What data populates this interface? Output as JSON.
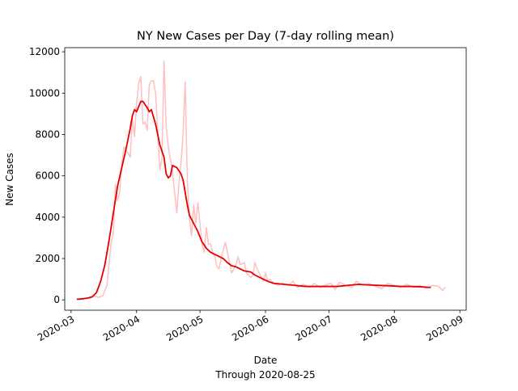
{
  "chart_data": {
    "type": "line",
    "title": "NY New Cases per Day (7-day rolling mean)",
    "xlabel": "Date",
    "xlabel_sub": "Through 2020-08-25",
    "ylabel": "New Cases",
    "xlim": [
      "2020-02-27",
      "2020-09-04"
    ],
    "ylim": [
      -500,
      12200
    ],
    "x_ticks": [
      "2020-03-01",
      "2020-04-01",
      "2020-05-01",
      "2020-06-01",
      "2020-07-01",
      "2020-08-01",
      "2020-09-01"
    ],
    "x_tick_labels": [
      "2020-03",
      "2020-04",
      "2020-05",
      "2020-06",
      "2020-07",
      "2020-08",
      "2020-09"
    ],
    "y_ticks": [
      0,
      2000,
      4000,
      6000,
      8000,
      10000,
      12000
    ],
    "y_tick_labels": [
      "0",
      "2000",
      "4000",
      "6000",
      "8000",
      "10000",
      "12000"
    ],
    "grid": false,
    "legend": "none",
    "series": [
      {
        "color": "#ffbfbf",
        "points": [
          [
            "2020-03-04",
            20
          ],
          [
            "2020-03-08",
            60
          ],
          [
            "2020-03-10",
            90
          ],
          [
            "2020-03-12",
            180
          ],
          [
            "2020-03-14",
            120
          ],
          [
            "2020-03-16",
            200
          ],
          [
            "2020-03-18",
            700
          ],
          [
            "2020-03-20",
            2800
          ],
          [
            "2020-03-21",
            3200
          ],
          [
            "2020-03-22",
            5600
          ],
          [
            "2020-03-23",
            4800
          ],
          [
            "2020-03-24",
            5200
          ],
          [
            "2020-03-25",
            6600
          ],
          [
            "2020-03-26",
            7400
          ],
          [
            "2020-03-28",
            7100
          ],
          [
            "2020-03-29",
            6900
          ],
          [
            "2020-03-30",
            8800
          ],
          [
            "2020-03-31",
            7900
          ],
          [
            "2020-04-01",
            9500
          ],
          [
            "2020-04-02",
            10500
          ],
          [
            "2020-04-03",
            10800
          ],
          [
            "2020-04-04",
            8500
          ],
          [
            "2020-04-05",
            8600
          ],
          [
            "2020-04-06",
            8200
          ],
          [
            "2020-04-07",
            10400
          ],
          [
            "2020-04-08",
            10600
          ],
          [
            "2020-04-09",
            10600
          ],
          [
            "2020-04-10",
            10000
          ],
          [
            "2020-04-12",
            6300
          ],
          [
            "2020-04-13",
            6800
          ],
          [
            "2020-04-14",
            11550
          ],
          [
            "2020-04-15",
            8400
          ],
          [
            "2020-04-16",
            7400
          ],
          [
            "2020-04-17",
            6800
          ],
          [
            "2020-04-18",
            6200
          ],
          [
            "2020-04-20",
            4200
          ],
          [
            "2020-04-21",
            5600
          ],
          [
            "2020-04-22",
            6600
          ],
          [
            "2020-04-23",
            8000
          ],
          [
            "2020-04-24",
            10550
          ],
          [
            "2020-04-25",
            5800
          ],
          [
            "2020-04-26",
            4000
          ],
          [
            "2020-04-27",
            3100
          ],
          [
            "2020-04-28",
            4600
          ],
          [
            "2020-04-29",
            3700
          ],
          [
            "2020-04-30",
            4700
          ],
          [
            "2020-05-01",
            3700
          ],
          [
            "2020-05-02",
            2700
          ],
          [
            "2020-05-03",
            2300
          ],
          [
            "2020-05-04",
            3500
          ],
          [
            "2020-05-05",
            2700
          ],
          [
            "2020-05-06",
            2700
          ],
          [
            "2020-05-07",
            2300
          ],
          [
            "2020-05-08",
            2100
          ],
          [
            "2020-05-09",
            1600
          ],
          [
            "2020-05-10",
            1500
          ],
          [
            "2020-05-12",
            2400
          ],
          [
            "2020-05-13",
            2800
          ],
          [
            "2020-05-14",
            2300
          ],
          [
            "2020-05-15",
            1800
          ],
          [
            "2020-05-16",
            1300
          ],
          [
            "2020-05-18",
            1700
          ],
          [
            "2020-05-19",
            2100
          ],
          [
            "2020-05-20",
            1700
          ],
          [
            "2020-05-22",
            1800
          ],
          [
            "2020-05-23",
            1300
          ],
          [
            "2020-05-25",
            1100
          ],
          [
            "2020-05-26",
            1200
          ],
          [
            "2020-05-27",
            1800
          ],
          [
            "2020-05-28",
            1500
          ],
          [
            "2020-05-30",
            1100
          ],
          [
            "2020-05-31",
            900
          ],
          [
            "2020-06-01",
            1300
          ],
          [
            "2020-06-02",
            900
          ],
          [
            "2020-06-03",
            1000
          ],
          [
            "2020-06-05",
            800
          ],
          [
            "2020-06-07",
            700
          ],
          [
            "2020-06-09",
            800
          ],
          [
            "2020-06-10",
            750
          ],
          [
            "2020-06-12",
            700
          ],
          [
            "2020-06-14",
            900
          ],
          [
            "2020-06-16",
            600
          ],
          [
            "2020-06-19",
            750
          ],
          [
            "2020-06-22",
            600
          ],
          [
            "2020-06-24",
            800
          ],
          [
            "2020-06-27",
            600
          ],
          [
            "2020-06-30",
            750
          ],
          [
            "2020-07-02",
            800
          ],
          [
            "2020-07-04",
            500
          ],
          [
            "2020-07-06",
            850
          ],
          [
            "2020-07-09",
            700
          ],
          [
            "2020-07-12",
            600
          ],
          [
            "2020-07-14",
            900
          ],
          [
            "2020-07-17",
            700
          ],
          [
            "2020-07-20",
            800
          ],
          [
            "2020-07-23",
            650
          ],
          [
            "2020-07-26",
            550
          ],
          [
            "2020-07-29",
            800
          ],
          [
            "2020-08-01",
            700
          ],
          [
            "2020-08-04",
            600
          ],
          [
            "2020-08-07",
            750
          ],
          [
            "2020-08-10",
            600
          ],
          [
            "2020-08-13",
            700
          ],
          [
            "2020-08-16",
            550
          ],
          [
            "2020-08-19",
            700
          ],
          [
            "2020-08-22",
            650
          ],
          [
            "2020-08-24",
            450
          ],
          [
            "2020-08-25",
            600
          ]
        ]
      },
      {
        "color": "#e60000",
        "points": [
          [
            "2020-03-04",
            30
          ],
          [
            "2020-03-07",
            60
          ],
          [
            "2020-03-09",
            90
          ],
          [
            "2020-03-11",
            150
          ],
          [
            "2020-03-13",
            350
          ],
          [
            "2020-03-15",
            900
          ],
          [
            "2020-03-17",
            1700
          ],
          [
            "2020-03-19",
            2900
          ],
          [
            "2020-03-21",
            4200
          ],
          [
            "2020-03-23",
            5500
          ],
          [
            "2020-03-25",
            6400
          ],
          [
            "2020-03-27",
            7300
          ],
          [
            "2020-03-29",
            8300
          ],
          [
            "2020-03-30",
            8900
          ],
          [
            "2020-03-31",
            9200
          ],
          [
            "2020-04-01",
            9100
          ],
          [
            "2020-04-03",
            9600
          ],
          [
            "2020-04-04",
            9600
          ],
          [
            "2020-04-06",
            9300
          ],
          [
            "2020-04-07",
            9100
          ],
          [
            "2020-04-08",
            9200
          ],
          [
            "2020-04-10",
            8500
          ],
          [
            "2020-04-12",
            7500
          ],
          [
            "2020-04-14",
            6900
          ],
          [
            "2020-04-15",
            6100
          ],
          [
            "2020-04-16",
            5900
          ],
          [
            "2020-04-17",
            6000
          ],
          [
            "2020-04-18",
            6500
          ],
          [
            "2020-04-20",
            6400
          ],
          [
            "2020-04-22",
            6100
          ],
          [
            "2020-04-23",
            5800
          ],
          [
            "2020-04-25",
            4600
          ],
          [
            "2020-04-26",
            4100
          ],
          [
            "2020-04-28",
            3700
          ],
          [
            "2020-04-30",
            3300
          ],
          [
            "2020-05-02",
            2800
          ],
          [
            "2020-05-04",
            2500
          ],
          [
            "2020-05-06",
            2300
          ],
          [
            "2020-05-08",
            2200
          ],
          [
            "2020-05-10",
            2100
          ],
          [
            "2020-05-12",
            2000
          ],
          [
            "2020-05-14",
            1800
          ],
          [
            "2020-05-16",
            1650
          ],
          [
            "2020-05-18",
            1600
          ],
          [
            "2020-05-20",
            1500
          ],
          [
            "2020-05-22",
            1400
          ],
          [
            "2020-05-25",
            1350
          ],
          [
            "2020-05-27",
            1200
          ],
          [
            "2020-05-30",
            1050
          ],
          [
            "2020-06-02",
            900
          ],
          [
            "2020-06-05",
            800
          ],
          [
            "2020-06-10",
            750
          ],
          [
            "2020-06-15",
            700
          ],
          [
            "2020-06-20",
            650
          ],
          [
            "2020-06-25",
            650
          ],
          [
            "2020-06-30",
            650
          ],
          [
            "2020-07-05",
            650
          ],
          [
            "2020-07-10",
            700
          ],
          [
            "2020-07-15",
            750
          ],
          [
            "2020-07-20",
            720
          ],
          [
            "2020-07-25",
            700
          ],
          [
            "2020-07-30",
            680
          ],
          [
            "2020-08-04",
            650
          ],
          [
            "2020-08-09",
            650
          ],
          [
            "2020-08-14",
            630
          ],
          [
            "2020-08-18",
            600
          ]
        ]
      }
    ]
  }
}
